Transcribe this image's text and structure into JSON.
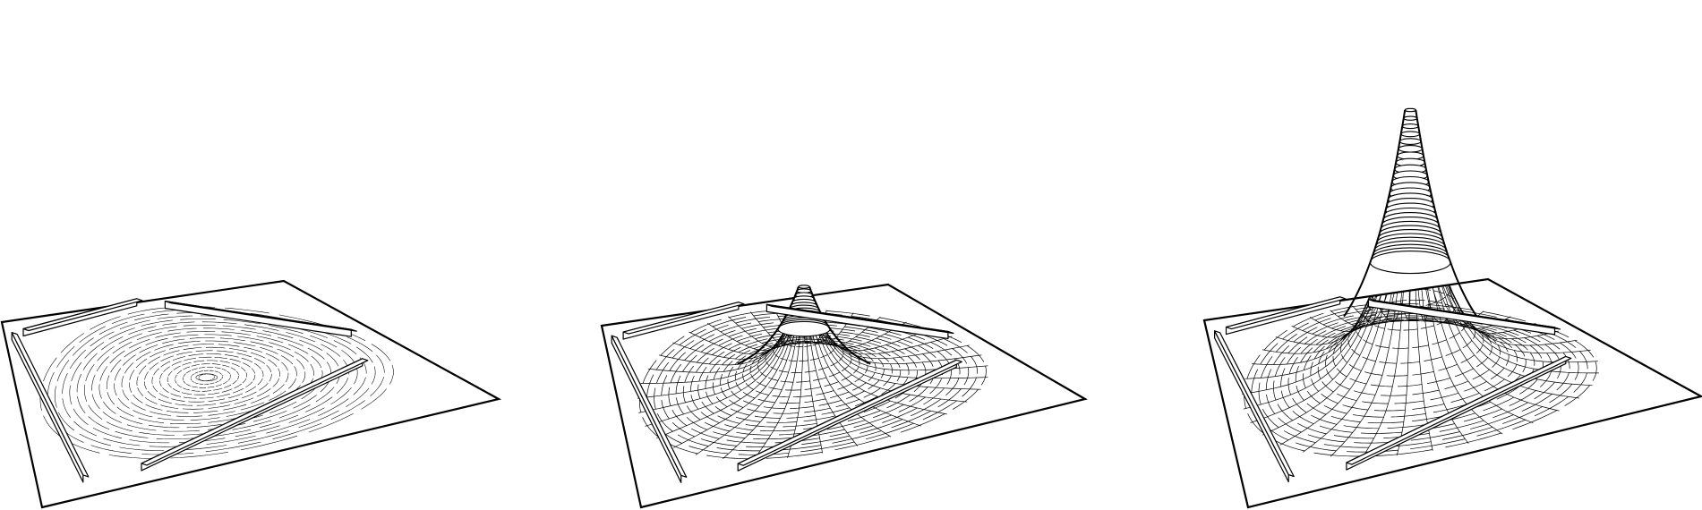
{
  "figure": {
    "panels": [
      {
        "id": "flat",
        "label": ""
      },
      {
        "id": "partially-raised",
        "label": ""
      },
      {
        "id": "fully-raised",
        "label": ""
      }
    ],
    "colors": {
      "stroke": "#000000",
      "fill": "#ffffff",
      "background": "#ffffff"
    }
  }
}
